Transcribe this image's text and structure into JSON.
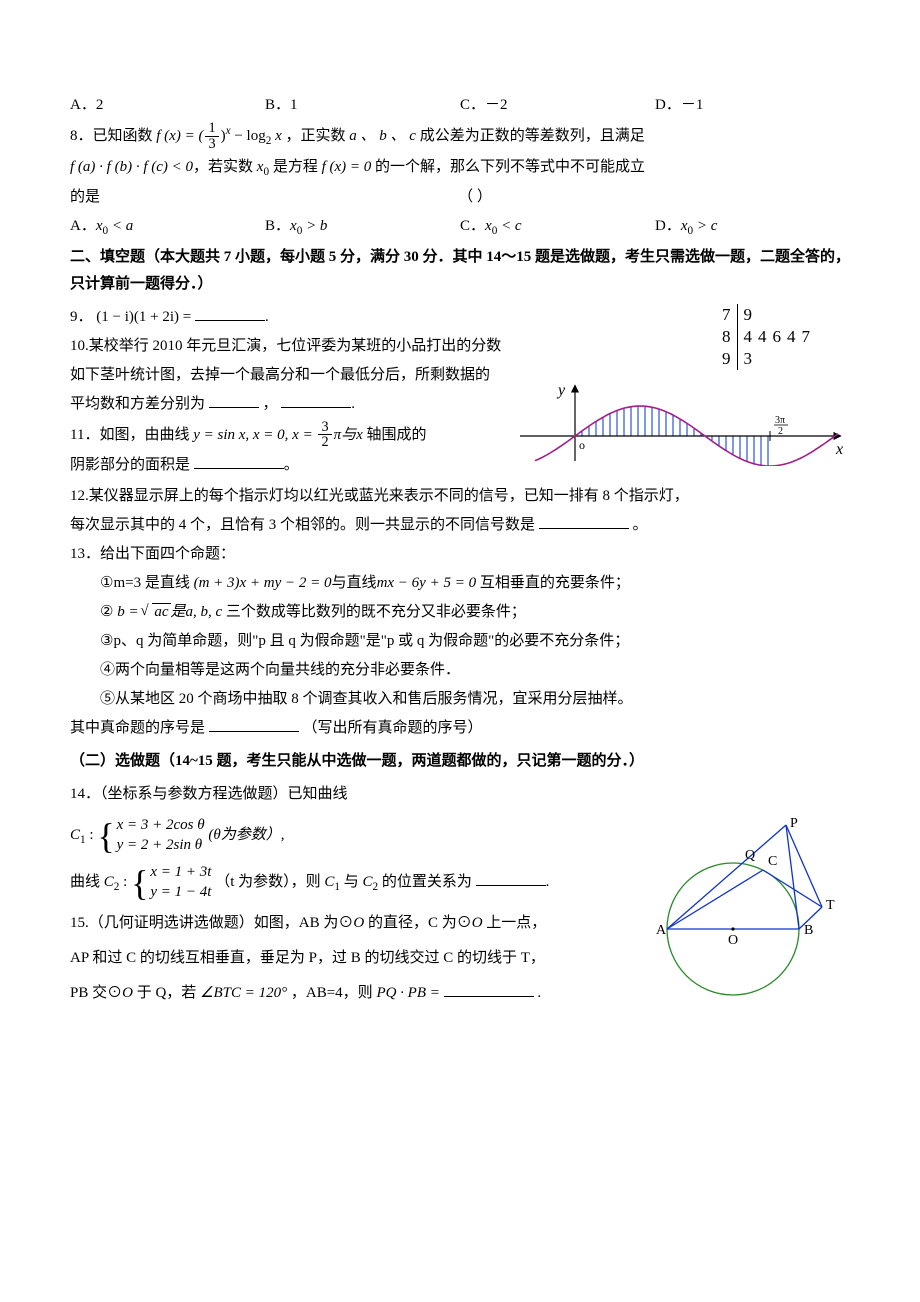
{
  "q7": {
    "options": {
      "A": "A．2",
      "B": "B．1",
      "C": "C．－2",
      "D": "D．－1"
    }
  },
  "q8": {
    "prefix": "8．已知函数 ",
    "func_lhs": "f (x) = (",
    "frac_top": "1",
    "frac_bot": "3",
    "func_mid": ")",
    "func_exp": "x",
    "func_rest": " − log",
    "log_base": "2",
    "func_arg": " x",
    "text1": " ，正实数 ",
    "vars": "a 、 b  、 c",
    "text2": " 成公差为正数的等差数列，且满足",
    "line2a": "f (a) · f (b) · f (c) < 0",
    "line2b": "，若实数 ",
    "x0": "x",
    "x0_sub": "0",
    "line2c": " 是方程 ",
    "eq": "f (x) = 0",
    "line2d": " 的一个解，那么下列不等式中不可能成立",
    "line3": "的是",
    "paren": "（        ）",
    "options": {
      "A": {
        "label": "A．",
        "expr": " < a"
      },
      "B": {
        "label": "B．",
        "expr": " > b"
      },
      "C": {
        "label": "C．",
        "expr": " < c"
      },
      "D": {
        "label": "D．",
        "expr": " > c"
      }
    }
  },
  "section2": {
    "title": "二、填空题（本大题共 7 小题，每小题 5 分，满分 30 分．其中 14～15 题是选做题，考生只需选做一题，二题全答的，只计算前一题得分．）"
  },
  "q9": {
    "label": "9．",
    "expr": "(1 − i)(1 + 2i) =",
    "tail": "."
  },
  "stemleaf": {
    "rows": [
      {
        "stem": "7",
        "leaf": "9"
      },
      {
        "stem": "8",
        "leaf": "44647"
      },
      {
        "stem": "9",
        "leaf": "3"
      }
    ]
  },
  "q10": {
    "l1": "10.某校举行 2010 年元旦汇演，七位评委为某班的小品打出的分数",
    "l2": "如下茎叶统计图，去掉一个最高分和一个最低分后，所剩数据的",
    "l3a": "平均数和方差分别为",
    "comma": "，",
    "tail": "."
  },
  "q11": {
    "label": "11．如图，由曲线 ",
    "expr1": "y = sin x, x = 0, x = ",
    "frac_top": "3",
    "frac_bot": "2",
    "expr2": "π与x",
    "expr3": " 轴围成的",
    "l2a": "阴影部分的面积是",
    "tail": "。",
    "graph": {
      "curve_color": "#a11f8c",
      "axis_color": "#000000",
      "hatch_color": "#0033cc",
      "y_label": "y",
      "x_label": "x",
      "o_label": "o",
      "tick_frac_top": "3π",
      "tick_frac_bot": "2"
    }
  },
  "q12": {
    "l1": "12.某仪器显示屏上的每个指示灯均以红光或蓝光来表示不同的信号，已知一排有 8 个指示灯，",
    "l2a": "每次显示其中的 4 个，且恰有 3 个相邻的。则一共显示的不同信号数是 ",
    "tail": " 。"
  },
  "q13": {
    "head": "13．给出下面四个命题：",
    "s1a": "①m=3 是直线 ",
    "s1expr1": "(m + 3)x + my − 2 = 0",
    "s1mid": "与直线",
    "s1expr2": "mx − 6y + 5 = 0",
    "s1b": " 互相垂直的充要条件；",
    "s2a": "② ",
    "s2lhs": "b = ",
    "s2rad": "ac",
    "s2mid": "是a, b, c",
    "s2b": " 三个数成等比数列的既不充分又非必要条件；",
    "s3": "③p、q 为简单命题，则\"p 且 q 为假命题\"是\"p 或 q 为假命题\"的必要不充分条件；",
    "s4": "④两个向量相等是这两个向量共线的充分非必要条件．",
    "s5": "⑤从某地区 20 个商场中抽取 8 个调查其收入和售后服务情况，宜采用分层抽样。",
    "tail1": "其中真命题的序号是",
    "tail2": "（写出所有真命题的序号）"
  },
  "section_opt": {
    "title": "（二）选做题（14~15 题，考生只能从中选做一题，两道题都做的，只记第一题的分．）"
  },
  "q14": {
    "head": "14．（坐标系与参数方程选做题）已知曲线",
    "c1_label": "C",
    "c1_sub": "1",
    "c1_colon": " : ",
    "c1_line1": "x = 3 + 2cos θ",
    "c1_line2": "y = 2 + 2sin θ",
    "c1_tail": "(θ为参数）,",
    "mid1": "曲线 ",
    "c2_label": "C",
    "c2_sub": "2",
    "c2_colon": " : ",
    "c2_line1": "x = 1 + 3t",
    "c2_line2": "y = 1 − 4t",
    "c2_tail": " （t 为参数），则 ",
    "and": " 与 ",
    "rel": " 的位置关系为",
    "period": "."
  },
  "q15": {
    "l1a": "15.（几何证明选讲选做题）如图，AB 为⊙",
    "O": "O",
    "l1b": " 的直径，C 为⊙",
    "l1c": " 上一点，",
    "l2": "AP 和过 C 的切线互相垂直，垂足为 P，过 B 的切线交过 C 的切线于 T，",
    "l3a": "PB 交⊙",
    "l3b": " 于 Q，若 ",
    "angle": "∠BTC = 120°",
    "l3c": " ，AB=4，则 ",
    "prod": "PQ · PB =",
    "tail": "    ."
  },
  "circle_fig": {
    "circle_color": "#2a8a2a",
    "line_color": "#1133cc",
    "labels": {
      "A": "A",
      "B": "B",
      "C": "C",
      "O": "O",
      "P": "P",
      "Q": "Q",
      "T": "T"
    }
  }
}
